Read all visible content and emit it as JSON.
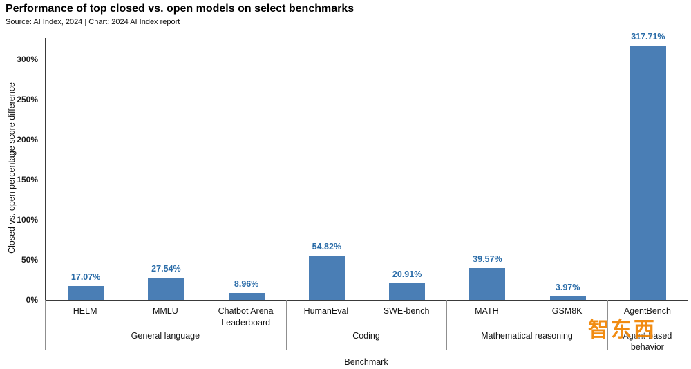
{
  "header": {
    "title": "Performance of top closed vs. open models on select benchmarks",
    "source": "Source: AI Index, 2024 | Chart: 2024 AI Index report"
  },
  "watermark": {
    "text": "智东西"
  },
  "chart_data": {
    "type": "bar",
    "title": "Performance of top closed vs. open models on select benchmarks",
    "subtitle": "Source: AI Index, 2024 | Chart: 2024 AI Index report",
    "xlabel": "Benchmark",
    "ylabel": "Closed vs. open percentage score difference",
    "ylim": [
      0,
      327
    ],
    "yticks": [
      0,
      50,
      100,
      150,
      200,
      250,
      300
    ],
    "ytick_suffix": "%",
    "grid": false,
    "legend": "none",
    "bar_color": "#4a7eb5",
    "value_label_color": "#2a6ca8",
    "groups": [
      {
        "label": "General language",
        "categories": [
          "HELM",
          "MMLU",
          "Chatbot Arena Leaderboard"
        ],
        "values": [
          17.07,
          27.54,
          8.96
        ],
        "value_labels": [
          "17.07%",
          "27.54%",
          "8.96%"
        ]
      },
      {
        "label": "Coding",
        "categories": [
          "HumanEval",
          "SWE-bench"
        ],
        "values": [
          54.82,
          20.91
        ],
        "value_labels": [
          "54.82%",
          "20.91%"
        ]
      },
      {
        "label": "Mathematical reasoning",
        "categories": [
          "MATH",
          "GSM8K"
        ],
        "values": [
          39.57,
          3.97
        ],
        "value_labels": [
          "39.57%",
          "3.97%"
        ]
      },
      {
        "label": "Agent-based behavior",
        "categories": [
          "AgentBench"
        ],
        "values": [
          317.71
        ],
        "value_labels": [
          "317.71%"
        ]
      }
    ]
  }
}
